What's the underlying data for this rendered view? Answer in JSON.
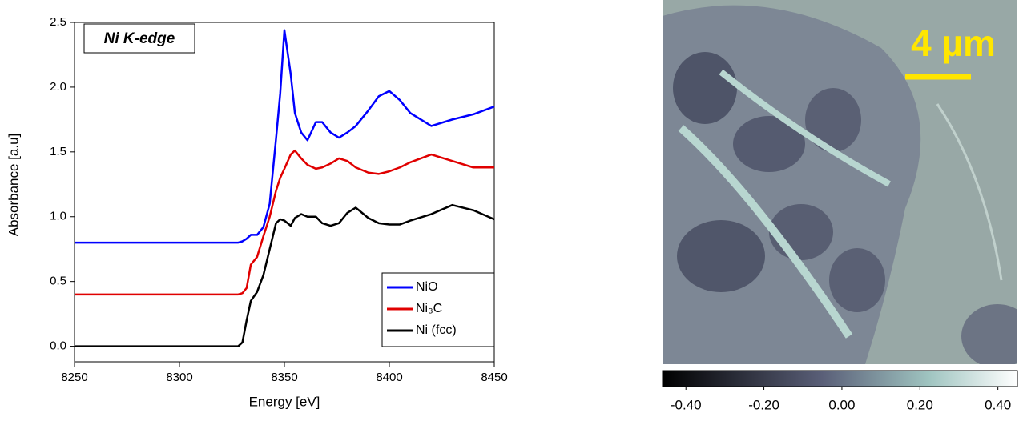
{
  "chart_data": [
    {
      "type": "line",
      "annotation": "Ni K-edge",
      "xlabel": "Energy [eV]",
      "ylabel": "Absorbance [a.u]",
      "x": [
        8250,
        8300,
        8320,
        8328,
        8330,
        8332,
        8334,
        8337,
        8340,
        8343,
        8346,
        8348,
        8350,
        8353,
        8355,
        8358,
        8361,
        8365,
        8368,
        8372,
        8376,
        8380,
        8384,
        8390,
        8395,
        8400,
        8405,
        8410,
        8420,
        8430,
        8440,
        8450
      ],
      "series": [
        {
          "name": "NiO",
          "color": "#0000ff",
          "values": [
            0.8,
            0.8,
            0.8,
            0.8,
            0.81,
            0.83,
            0.86,
            0.86,
            0.92,
            1.1,
            1.6,
            1.95,
            2.44,
            2.1,
            1.8,
            1.65,
            1.59,
            1.73,
            1.73,
            1.65,
            1.61,
            1.65,
            1.7,
            1.82,
            1.93,
            1.97,
            1.9,
            1.8,
            1.7,
            1.75,
            1.79,
            1.85
          ]
        },
        {
          "name": "Ni₃C",
          "color": "#e00000",
          "values": [
            0.4,
            0.4,
            0.4,
            0.4,
            0.41,
            0.45,
            0.63,
            0.69,
            0.85,
            1.0,
            1.2,
            1.3,
            1.37,
            1.48,
            1.51,
            1.45,
            1.4,
            1.37,
            1.38,
            1.41,
            1.45,
            1.43,
            1.38,
            1.34,
            1.33,
            1.35,
            1.38,
            1.42,
            1.48,
            1.43,
            1.38,
            1.38
          ]
        },
        {
          "name": "Ni (fcc)",
          "color": "#000000",
          "values": [
            0,
            0,
            0,
            0,
            0.03,
            0.2,
            0.35,
            0.42,
            0.55,
            0.75,
            0.95,
            0.98,
            0.97,
            0.93,
            0.99,
            1.02,
            1.0,
            1.0,
            0.95,
            0.93,
            0.95,
            1.03,
            1.07,
            0.99,
            0.95,
            0.94,
            0.94,
            0.97,
            1.02,
            1.09,
            1.05,
            0.98
          ]
        }
      ],
      "xlim": [
        8250,
        8450
      ],
      "xticks": [
        8250,
        8300,
        8350,
        8400,
        8450
      ],
      "ylim": [
        -0.12,
        2.5
      ],
      "yticks": [
        {
          "value": 0,
          "label": "0.0"
        },
        0.5,
        {
          "value": 1,
          "label": "1.0"
        },
        1.5,
        {
          "value": 2,
          "label": "2.0"
        },
        2.5
      ],
      "legend": "lower right"
    },
    {
      "type": "image",
      "annotation": "4 µm",
      "colorbar_lim": [
        -0.46,
        0.45
      ],
      "colorbar_ticks": [
        {
          "value": -0.4,
          "label": "-0.40"
        },
        {
          "value": -0.2,
          "label": "-0.20"
        },
        {
          "value": 0,
          "label": "0.00"
        },
        {
          "value": 0.2,
          "label": "0.20"
        },
        {
          "value": 0.4,
          "label": "0.40"
        }
      ]
    }
  ]
}
